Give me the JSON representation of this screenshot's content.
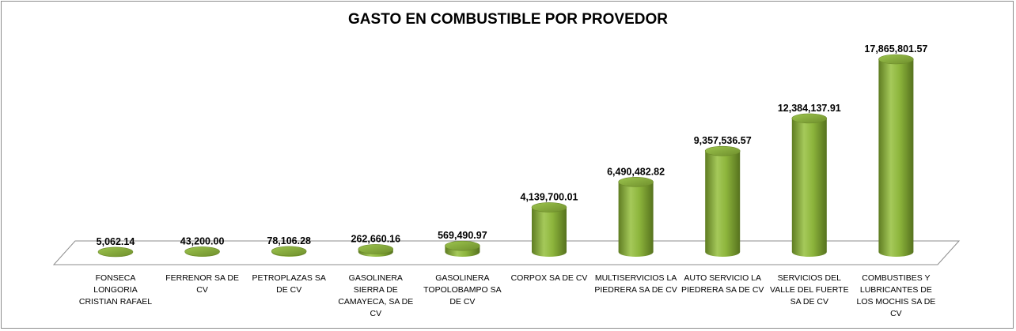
{
  "chart_data": {
    "type": "bar",
    "title": "GASTO EN COMBUSTIBLE POR PROVEDOR",
    "xlabel": "",
    "ylabel": "",
    "ylim": [
      0,
      18000000
    ],
    "grid": false,
    "legend": "none",
    "bar_style": "3d-cylinder",
    "bar_color": "#8db53c",
    "categories": [
      "FONSECA LONGORIA CRISTIAN RAFAEL",
      "FERRENOR SA DE CV",
      "PETROPLAZAS SA DE CV",
      "GASOLINERA SIERRA DE CAMAYECA, SA DE CV",
      "GASOLINERA TOPOLOBAMPO SA DE CV",
      "CORPOX  SA DE CV",
      "MULTISERVICIOS LA PIEDRERA SA DE CV",
      "AUTO SERVICIO LA PIEDRERA SA DE CV",
      "SERVICIOS DEL VALLE DEL FUERTE SA DE CV",
      "COMBUSTIBES Y LUBRICANTES DE LOS MOCHIS SA DE CV"
    ],
    "values": [
      5062.14,
      43200.0,
      78106.28,
      262660.16,
      569490.97,
      4139700.01,
      6490482.82,
      9357536.57,
      12384137.91,
      17865801.57
    ],
    "data_labels": [
      "5,062.14",
      "43,200.00",
      "78,106.28",
      "262,660.16",
      "569,490.97",
      "4,139,700.01",
      "6,490,482.82",
      "9,357,536.57",
      "12,384,137.91",
      "17,865,801.57"
    ]
  }
}
